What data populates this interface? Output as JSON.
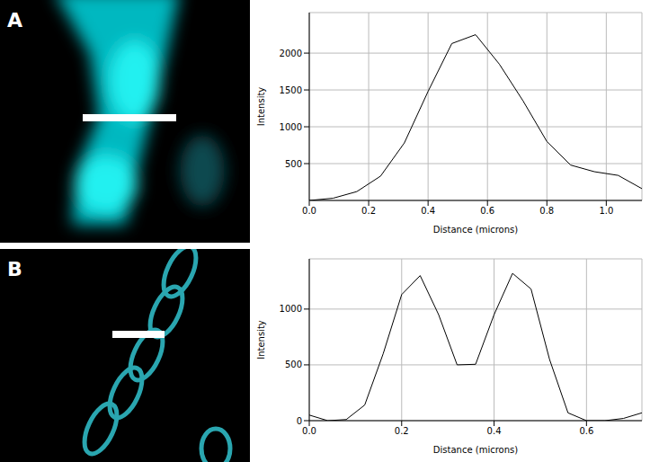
{
  "chart_data": [
    {
      "panel": "A",
      "type": "line",
      "x_label": "Distance (microns)",
      "y_label": "Intensity",
      "color": "#000000",
      "grid": true,
      "x": [
        0,
        0.08,
        0.16,
        0.24,
        0.32,
        0.4,
        0.48,
        0.56,
        0.64,
        0.72,
        0.8,
        0.88,
        0.96,
        1.04,
        1.12
      ],
      "values": [
        0,
        30,
        120,
        330,
        780,
        1480,
        2130,
        2250,
        1850,
        1350,
        800,
        480,
        390,
        340,
        160
      ],
      "xlim": [
        0,
        1.12
      ],
      "xticks": [
        {
          "value": 0,
          "label": "0.0"
        },
        0.2,
        0.4,
        0.6,
        0.8,
        {
          "value": 1,
          "label": "1.0"
        }
      ],
      "ylim": [
        0,
        2550
      ],
      "yticks": [
        500,
        1000,
        1500,
        2000
      ]
    },
    {
      "panel": "B",
      "type": "line",
      "x_label": "Distance (microns)",
      "y_label": "Intensity",
      "color": "#000000",
      "grid": true,
      "x": [
        0,
        0.04,
        0.08,
        0.12,
        0.16,
        0.2,
        0.24,
        0.28,
        0.32,
        0.36,
        0.4,
        0.44,
        0.48,
        0.52,
        0.56,
        0.6,
        0.64,
        0.68,
        0.72
      ],
      "values": [
        50,
        0,
        10,
        140,
        600,
        1130,
        1300,
        950,
        500,
        505,
        950,
        1320,
        1180,
        550,
        70,
        0,
        0,
        20,
        70
      ],
      "xlim": [
        0,
        0.72
      ],
      "xticks": [
        {
          "value": 0,
          "label": "0.0"
        },
        0.2,
        0.4,
        0.6
      ],
      "ylim": [
        0,
        1450
      ],
      "yticks": [
        0,
        500,
        1000
      ]
    }
  ]
}
